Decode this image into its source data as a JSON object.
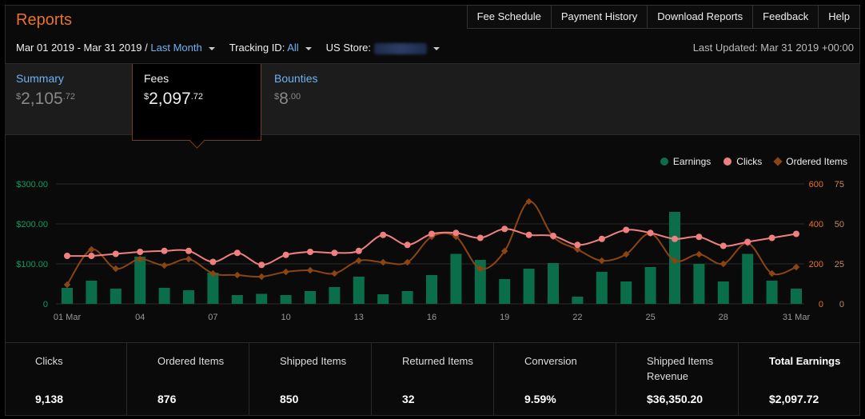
{
  "header": {
    "title": "Reports",
    "nav": [
      "Fee Schedule",
      "Payment History",
      "Download Reports",
      "Feedback",
      "Help"
    ]
  },
  "filters": {
    "date_range": "Mar 01 2019 - Mar 31 2019 /",
    "period": "Last Month",
    "tracking_label": "Tracking ID:",
    "tracking_value": "All",
    "store_label": "US Store:",
    "last_updated": "Last Updated: Mar 31 2019 +00:00"
  },
  "tabs": [
    {
      "label": "Summary",
      "currency": "$",
      "whole": "2,105",
      "cents": ".72"
    },
    {
      "label": "Fees",
      "currency": "$",
      "whole": "2,097",
      "cents": ".72"
    },
    {
      "label": "Bounties",
      "currency": "$",
      "whole": "8",
      "cents": ".00"
    }
  ],
  "legend": {
    "earnings": "Earnings",
    "clicks": "Clicks",
    "ordered": "Ordered Items"
  },
  "colors": {
    "earnings": "#0b6e4a",
    "clicks": "#f08080",
    "ordered": "#8b4513",
    "accent": "#e8702a",
    "link": "#6fb2f3"
  },
  "chart_data": {
    "type": "bar",
    "x_tick_labels": [
      "01 Mar",
      "04",
      "07",
      "10",
      "13",
      "16",
      "19",
      "22",
      "25",
      "28",
      "31 Mar"
    ],
    "left_axis": {
      "ticks": [
        "0",
        "$100.00",
        "$200.00",
        "$300.00"
      ],
      "range": [
        0,
        300
      ]
    },
    "right_axis_clicks": {
      "ticks": [
        "0",
        "200",
        "400",
        "600"
      ],
      "range": [
        0,
        600
      ]
    },
    "right_axis_items": {
      "ticks": [
        "0",
        "25",
        "50",
        "75"
      ],
      "range": [
        0,
        75
      ]
    },
    "x": [
      1,
      2,
      3,
      4,
      5,
      6,
      7,
      8,
      9,
      10,
      11,
      12,
      13,
      14,
      15,
      16,
      17,
      18,
      19,
      20,
      21,
      22,
      23,
      24,
      25,
      26,
      27,
      28,
      29,
      30,
      31
    ],
    "series": [
      {
        "name": "Earnings",
        "axis": "left",
        "values": [
          40,
          58,
          38,
          118,
          40,
          34,
          78,
          22,
          25,
          22,
          32,
          42,
          68,
          24,
          32,
          72,
          125,
          110,
          62,
          88,
          102,
          18,
          80,
          56,
          92,
          230,
          100,
          56,
          125,
          58,
          38
        ]
      },
      {
        "name": "Clicks",
        "axis": "right-clicks",
        "values": [
          240,
          240,
          250,
          260,
          265,
          265,
          210,
          255,
          195,
          245,
          260,
          255,
          265,
          345,
          295,
          350,
          355,
          330,
          375,
          345,
          340,
          295,
          325,
          370,
          355,
          325,
          335,
          290,
          310,
          330,
          350
        ]
      },
      {
        "name": "Ordered Items",
        "axis": "right-items",
        "values": [
          12,
          34,
          22,
          28,
          24,
          28,
          19,
          18,
          17,
          20,
          21,
          19,
          27,
          26,
          26,
          42,
          42,
          22,
          33,
          64,
          42,
          34,
          27,
          31,
          44,
          27,
          31,
          25,
          38,
          19,
          23
        ]
      }
    ],
    "grid": true
  },
  "stats": [
    {
      "label": "Clicks",
      "value": "9,138"
    },
    {
      "label": "Ordered Items",
      "value": "876"
    },
    {
      "label": "Shipped Items",
      "value": "850"
    },
    {
      "label": "Returned Items",
      "value": "32"
    },
    {
      "label": "Conversion",
      "value": "9.59%"
    },
    {
      "label": "Shipped Items Revenue",
      "value": "$36,350.20"
    },
    {
      "label": "Total Earnings",
      "value": "$2,097.72"
    }
  ]
}
